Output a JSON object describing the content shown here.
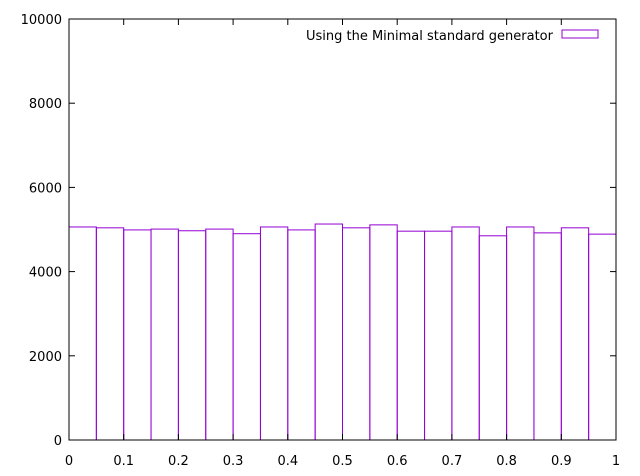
{
  "chart_data": {
    "type": "bar",
    "title": "",
    "xlabel": "",
    "ylabel": "",
    "xlim": [
      0,
      1
    ],
    "ylim": [
      0,
      10000
    ],
    "xticks": [
      "0",
      "0.1",
      "0.2",
      "0.3",
      "0.4",
      "0.5",
      "0.6",
      "0.7",
      "0.8",
      "0.9",
      "1"
    ],
    "yticks": [
      "0",
      "2000",
      "4000",
      "6000",
      "8000",
      "10000"
    ],
    "bin_width": 0.05,
    "series": [
      {
        "name": "Using the Minimal standard generator",
        "color": "#9400d3",
        "x": [
          0,
          0.05,
          0.1,
          0.15,
          0.2,
          0.25,
          0.3,
          0.35,
          0.4,
          0.45,
          0.5,
          0.55,
          0.6,
          0.65,
          0.7,
          0.75,
          0.8,
          0.85,
          0.9,
          0.95
        ],
        "values": [
          5060,
          5040,
          4990,
          5010,
          4970,
          5010,
          4900,
          5060,
          4990,
          5130,
          5040,
          5110,
          4960,
          4960,
          5060,
          4850,
          5060,
          4920,
          5040,
          4890
        ]
      }
    ],
    "legend_position": "top-right",
    "grid": false
  }
}
